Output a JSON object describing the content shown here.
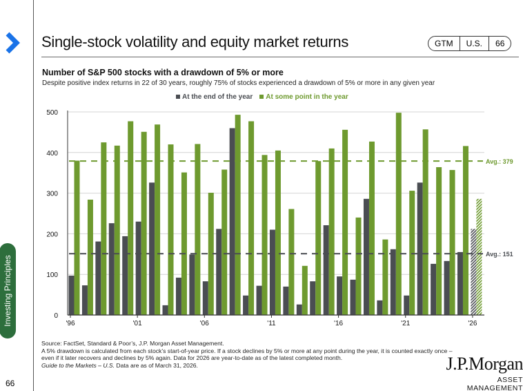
{
  "header": {
    "title": "Single-stock volatility and equity market returns",
    "badge": [
      "GTM",
      "U.S.",
      "66"
    ]
  },
  "sidebar": {
    "section": "Investing Principles",
    "page_number": "66"
  },
  "colors": {
    "accent": "#1a73e8",
    "dark_series": "#4a4d52",
    "green_series": "#6e9a2f",
    "pill": "#2d6e3c"
  },
  "chart_data": {
    "type": "bar",
    "title": "Number of S&P 500 stocks with a drawdown of 5% or more",
    "subtitle": "Despite positive index returns in 22 of 30 years, roughly 75% of stocks experienced a drawdown of 5% or more in any given year",
    "legend_placement": "top-center",
    "categories": [
      1996,
      1997,
      1998,
      1999,
      2000,
      2001,
      2002,
      2003,
      2004,
      2005,
      2006,
      2007,
      2008,
      2009,
      2010,
      2011,
      2012,
      2013,
      2014,
      2015,
      2016,
      2017,
      2018,
      2019,
      2020,
      2021,
      2022,
      2023,
      2024,
      2025,
      2026
    ],
    "x_tick_labels": [
      {
        "year": 1996,
        "label": "'96"
      },
      {
        "year": 2001,
        "label": "'01"
      },
      {
        "year": 2006,
        "label": "'06"
      },
      {
        "year": 2011,
        "label": "'11"
      },
      {
        "year": 2016,
        "label": "'16"
      },
      {
        "year": 2021,
        "label": "'21"
      },
      {
        "year": 2026,
        "label": "'26"
      }
    ],
    "y_ticks": [
      0,
      100,
      200,
      300,
      400,
      500
    ],
    "ylim": [
      0,
      500
    ],
    "grid": true,
    "hatched_category": 2026,
    "series": [
      {
        "name": "At the end of the year",
        "color": "#4a4d52",
        "values": [
          97,
          73,
          181,
          226,
          194,
          230,
          326,
          24,
          92,
          149,
          83,
          212,
          460,
          48,
          72,
          210,
          70,
          26,
          83,
          221,
          95,
          87,
          286,
          36,
          162,
          48,
          326,
          126,
          133,
          155,
          212
        ]
      },
      {
        "name": "At some point in the year",
        "color": "#6e9a2f",
        "values": [
          380,
          284,
          425,
          417,
          477,
          451,
          469,
          420,
          351,
          421,
          301,
          358,
          493,
          477,
          394,
          405,
          261,
          121,
          379,
          410,
          456,
          240,
          427,
          186,
          498,
          306,
          457,
          364,
          357,
          416,
          286
        ]
      }
    ],
    "averages": [
      {
        "series": "At some point in the year",
        "value": 379,
        "label": "Avg.: 379",
        "color": "#6e9a2f"
      },
      {
        "series": "At the end of the year",
        "value": 151,
        "label": "Avg.: 151",
        "color": "#4a4d52"
      }
    ]
  },
  "footer": {
    "source": "Source: FactSet, Standard & Poor’s, J.P. Morgan Asset Management.",
    "note": "A 5% drawdown is calculated from each stock’s start-of-year price.  If a stock declines by 5% or more at any point during the year, it is counted exactly once – even if it later recovers and declines by 5% again. Data for 2026 are year-to-date as of the latest completed month.",
    "guide": "Guide to the Markets – U.S.",
    "asof": " Data are as of March 31, 2026."
  },
  "logo": {
    "name": "J.P.Morgan",
    "sub": "ASSET MANAGEMENT"
  }
}
